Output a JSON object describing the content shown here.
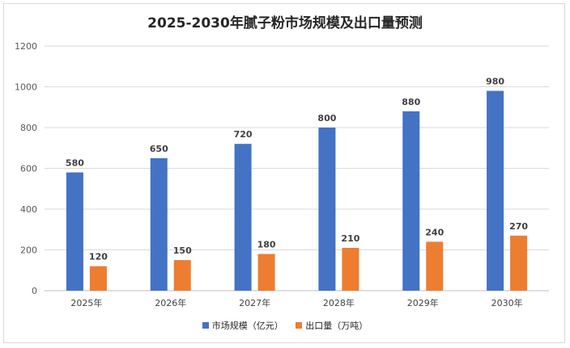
{
  "chart_data": {
    "type": "bar",
    "title": "2025-2030年腻子粉市场规模及出口量预测",
    "categories": [
      "2025年",
      "2026年",
      "2027年",
      "2028年",
      "2029年",
      "2030年"
    ],
    "series": [
      {
        "name": "市场规模（亿元）",
        "values": [
          580,
          650,
          720,
          800,
          880,
          980
        ],
        "color": "#4472c4"
      },
      {
        "name": "出口量（万吨）",
        "values": [
          120,
          150,
          180,
          210,
          240,
          270
        ],
        "color": "#ed7d31"
      }
    ],
    "yticks": [
      0,
      200,
      400,
      600,
      800,
      1000,
      1200
    ],
    "ylim": [
      0,
      1200
    ],
    "grid": true,
    "legend_position": "bottom",
    "xlabel": "",
    "ylabel": ""
  }
}
